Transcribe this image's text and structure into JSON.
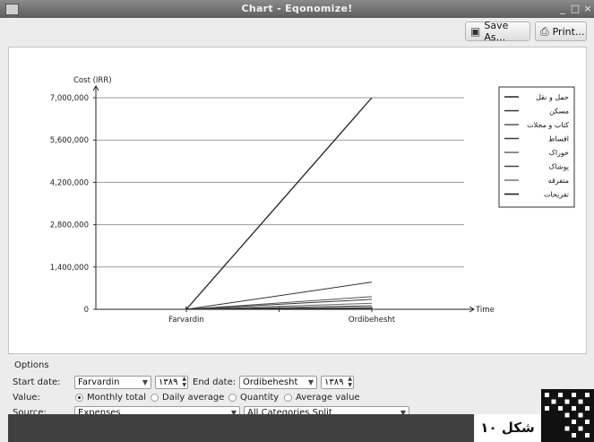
{
  "window": {
    "title": "Chart - Eqonomize!",
    "controls": [
      "_",
      "□",
      "×"
    ]
  },
  "toolbar": {
    "save_label": "Save As...",
    "print_label": "Print..."
  },
  "chart_data": {
    "type": "line",
    "ylabel": "Cost (IRR)",
    "xlabel": "Time",
    "categories": [
      "Farvardin",
      "Ordibehesht"
    ],
    "yticks": [
      "0",
      "1,400,000",
      "2,800,000",
      "4,200,000",
      "5,600,000",
      "7,000,000"
    ],
    "ylim": [
      0,
      7000000
    ],
    "grid": true,
    "legend_position": "top-right",
    "series": [
      {
        "name": "حمل و نقل",
        "values": [
          0,
          7000000
        ]
      },
      {
        "name": "مسکن",
        "values": [
          0,
          900000
        ]
      },
      {
        "name": "کتاب و مجلات",
        "values": [
          0,
          420000
        ]
      },
      {
        "name": "اقساط",
        "values": [
          0,
          330000
        ]
      },
      {
        "name": "خوراک",
        "values": [
          0,
          200000
        ]
      },
      {
        "name": "پوشاک",
        "values": [
          0,
          120000
        ]
      },
      {
        "name": "متفرقه",
        "values": [
          0,
          70000
        ]
      },
      {
        "name": "تفریحات",
        "values": [
          0,
          30000
        ]
      }
    ],
    "colors": [
      "#222222",
      "#333333",
      "#555555",
      "#3a3a3a",
      "#666666",
      "#444444",
      "#777777",
      "#111111"
    ]
  },
  "options": {
    "title": "Options",
    "start_label": "Start date:",
    "start_value": "Farvardin",
    "start_year": "۱۳۸۹",
    "end_label": "End date:",
    "end_value": "Ordibehesht",
    "end_year": "۱۳۸۹",
    "value_label": "Value:",
    "radio_monthly": "Monthly total",
    "radio_daily": "Daily average",
    "radio_quantity": "Quantity",
    "radio_average": "Average value",
    "source_label": "Source:",
    "source_value": "Expenses",
    "categories_value": "All Categories Split"
  },
  "caption": "شکل ۱۰"
}
